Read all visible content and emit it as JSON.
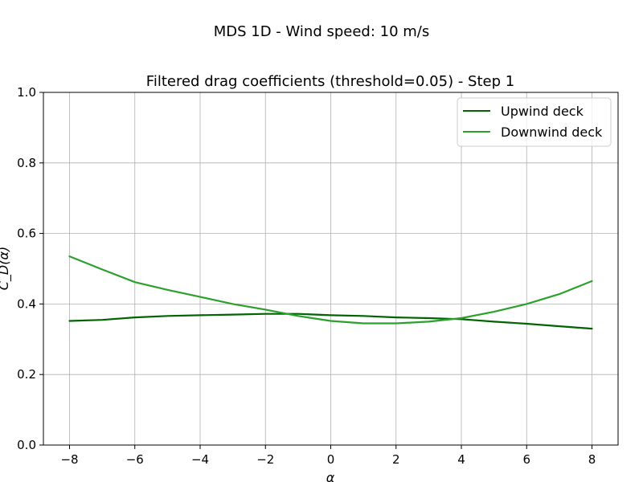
{
  "suptitle": "MDS 1D - Wind speed: 10 m/s",
  "chart_data": {
    "type": "line",
    "title": "Filtered drag coefficients (threshold=0.05) - Step 1",
    "xlabel": "α",
    "ylabel": "C_D(α)",
    "xlim": [
      -8.8,
      8.8
    ],
    "ylim": [
      0.0,
      1.0
    ],
    "xticks": [
      -8,
      -6,
      -4,
      -2,
      0,
      2,
      4,
      6,
      8
    ],
    "xtick_labels": [
      "−8",
      "−6",
      "−4",
      "−2",
      "0",
      "2",
      "4",
      "6",
      "8"
    ],
    "yticks": [
      0.0,
      0.2,
      0.4,
      0.6,
      0.8,
      1.0
    ],
    "ytick_labels": [
      "0.0",
      "0.2",
      "0.4",
      "0.6",
      "0.8",
      "1.0"
    ],
    "grid": true,
    "legend_position": "top-right",
    "series": [
      {
        "name": "Upwind deck",
        "color": "#006400",
        "x": [
          -8,
          -7,
          -6,
          -5,
          -4,
          -3,
          -2,
          -1,
          0,
          1,
          2,
          3,
          4,
          5,
          6,
          7,
          8
        ],
        "y": [
          0.352,
          0.355,
          0.362,
          0.366,
          0.368,
          0.37,
          0.372,
          0.372,
          0.368,
          0.366,
          0.362,
          0.36,
          0.357,
          0.35,
          0.344,
          0.337,
          0.33
        ]
      },
      {
        "name": "Downwind deck",
        "color": "#2ca02c",
        "x": [
          -8,
          -7,
          -6,
          -5,
          -4,
          -3,
          -2,
          -1,
          0,
          1,
          2,
          3,
          4,
          5,
          6,
          7,
          8
        ],
        "y": [
          0.535,
          0.498,
          0.462,
          0.44,
          0.42,
          0.4,
          0.384,
          0.366,
          0.352,
          0.345,
          0.345,
          0.35,
          0.36,
          0.378,
          0.4,
          0.428,
          0.465
        ]
      }
    ]
  }
}
